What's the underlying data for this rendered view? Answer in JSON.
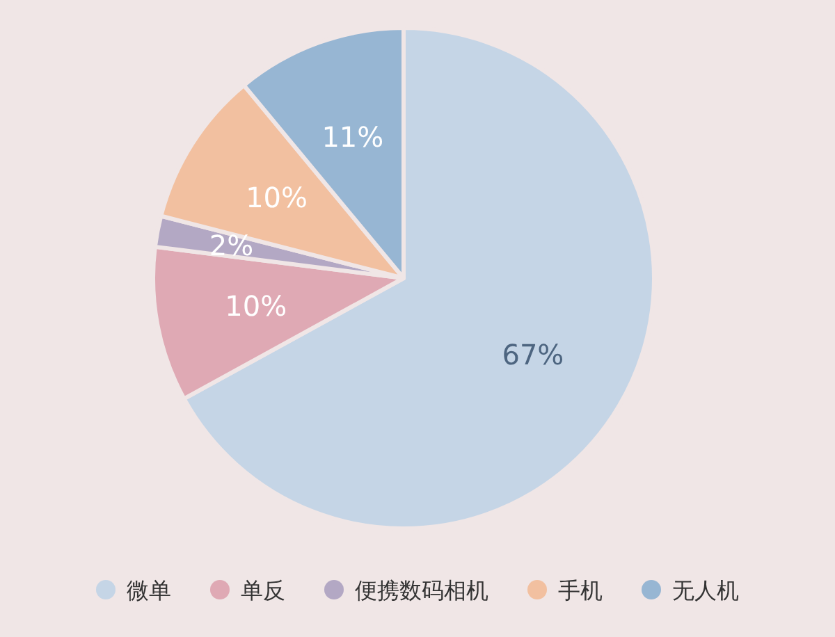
{
  "chart_data": {
    "type": "pie",
    "categories": [
      "微单",
      "单反",
      "便携数码相机",
      "手机",
      "无人机"
    ],
    "values": [
      67,
      10,
      2,
      10,
      11
    ],
    "colors": [
      "#c5d5e6",
      "#dfa9b4",
      "#b3a8c4",
      "#f2c0a0",
      "#97b6d3"
    ],
    "value_labels": [
      "67%",
      "10%",
      "2%",
      "10%",
      "11%"
    ],
    "legend": "bottom"
  }
}
